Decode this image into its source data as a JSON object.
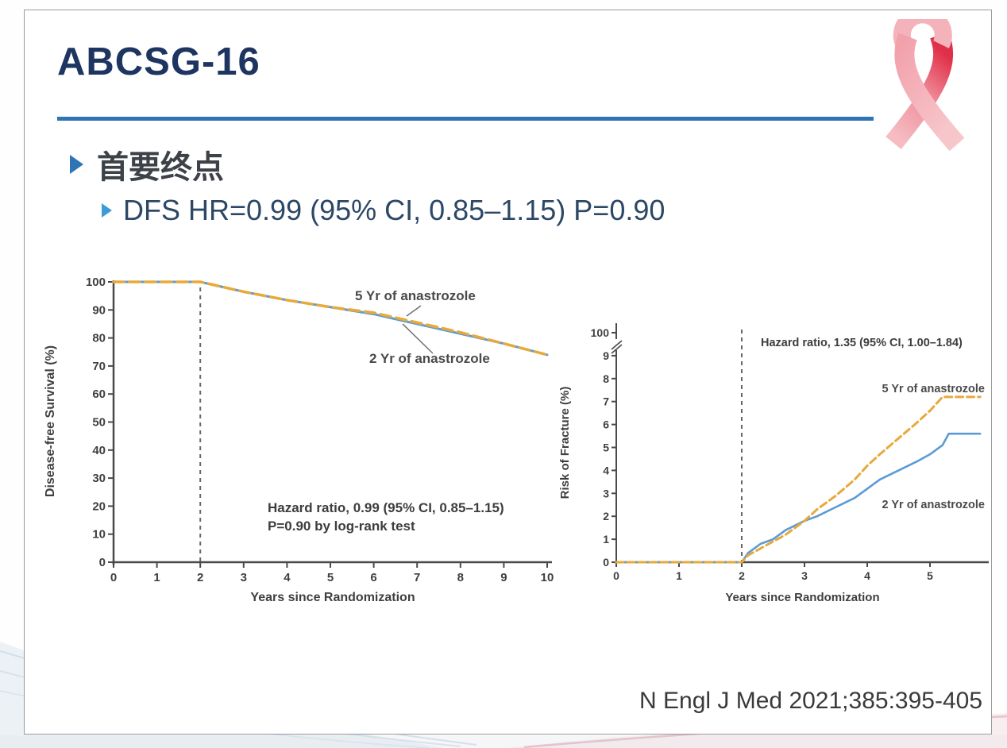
{
  "slide": {
    "title": "ABCSG-16",
    "bullets": {
      "primary": "首要终点",
      "dfs": "DFS HR=0.99 (95% CI, 0.85–1.15) P=0.90"
    },
    "citation": "N Engl J Med 2021;385:395-405"
  },
  "colors": {
    "title": "#1d3560",
    "accent_rule": "#2f74b5",
    "bullet_arrow": "#2e75b6",
    "sub_bullet_arrow": "#3f9bd8",
    "anastrozole_5yr": "#e8a93b",
    "anastrozole_2yr": "#5b9bd5",
    "axis": "#4a4a4a",
    "ribbon_red": "#e03049",
    "ribbon_pink": "#f4a9b1"
  },
  "chart_data": [
    {
      "type": "line",
      "title": "",
      "xlabel": "Years since Randomization",
      "ylabel": "Disease-free Survival (%)",
      "xlim": [
        0,
        10
      ],
      "ylim": [
        0,
        100
      ],
      "xticks": [
        0,
        1,
        2,
        3,
        4,
        5,
        6,
        7,
        8,
        9,
        10
      ],
      "yticks": [
        0,
        10,
        20,
        30,
        40,
        50,
        60,
        70,
        80,
        90,
        100
      ],
      "grid": false,
      "legend_position": "inline-labels",
      "vline_x": 2,
      "annotation": [
        "Hazard ratio, 0.99 (95% CI, 0.85–1.15)",
        "P=0.90 by log-rank test"
      ],
      "series": [
        {
          "name": "5 Yr of anastrozole",
          "color": "#e8a93b",
          "dashed": true,
          "x": [
            0,
            1,
            2,
            3,
            4,
            5,
            6,
            7,
            8,
            9,
            10
          ],
          "y": [
            100,
            100,
            100,
            96.5,
            93.5,
            91,
            89,
            85.5,
            82,
            78,
            74
          ]
        },
        {
          "name": "2 Yr of anastrozole",
          "color": "#5b9bd5",
          "dashed": false,
          "x": [
            0,
            1,
            2,
            3,
            4,
            5,
            6,
            7,
            8,
            9,
            10
          ],
          "y": [
            100,
            100,
            100,
            96.5,
            93.5,
            91,
            88.5,
            85,
            81.5,
            78,
            74
          ]
        }
      ]
    },
    {
      "type": "line",
      "title": "",
      "xlabel": "Years since Randomization",
      "ylabel": "Risk of Fracture (%)",
      "xlim": [
        0,
        5.8
      ],
      "ylim": [
        0,
        9.6
      ],
      "xticks": [
        0,
        1,
        2,
        3,
        4,
        5
      ],
      "yticks": [
        0,
        1,
        2,
        3,
        4,
        5,
        6,
        7,
        8,
        9
      ],
      "y_axis_break_label": "100",
      "grid": false,
      "legend_position": "inline-labels",
      "vline_x": 2,
      "annotation": [
        "Hazard ratio, 1.35 (95% CI, 1.00–1.84)"
      ],
      "series": [
        {
          "name": "5 Yr of anastrozole",
          "color": "#e8a93b",
          "dashed": true,
          "x": [
            0,
            1,
            2,
            2.1,
            2.3,
            2.5,
            2.7,
            3.0,
            3.2,
            3.5,
            3.8,
            4.0,
            4.2,
            4.5,
            4.8,
            5.0,
            5.1,
            5.2,
            5.8
          ],
          "y": [
            0,
            0,
            0,
            0.3,
            0.6,
            0.9,
            1.2,
            1.8,
            2.3,
            2.9,
            3.6,
            4.2,
            4.7,
            5.4,
            6.1,
            6.6,
            6.9,
            7.2,
            7.2
          ]
        },
        {
          "name": "2 Yr of anastrozole",
          "color": "#5b9bd5",
          "dashed": false,
          "x": [
            0,
            1,
            2,
            2.1,
            2.3,
            2.5,
            2.7,
            3.0,
            3.2,
            3.5,
            3.8,
            4.0,
            4.2,
            4.5,
            4.8,
            5.0,
            5.2,
            5.3,
            5.8
          ],
          "y": [
            0,
            0,
            0,
            0.4,
            0.8,
            1.0,
            1.4,
            1.8,
            2.0,
            2.4,
            2.8,
            3.2,
            3.6,
            4.0,
            4.4,
            4.7,
            5.1,
            5.6,
            5.6
          ]
        }
      ]
    }
  ]
}
